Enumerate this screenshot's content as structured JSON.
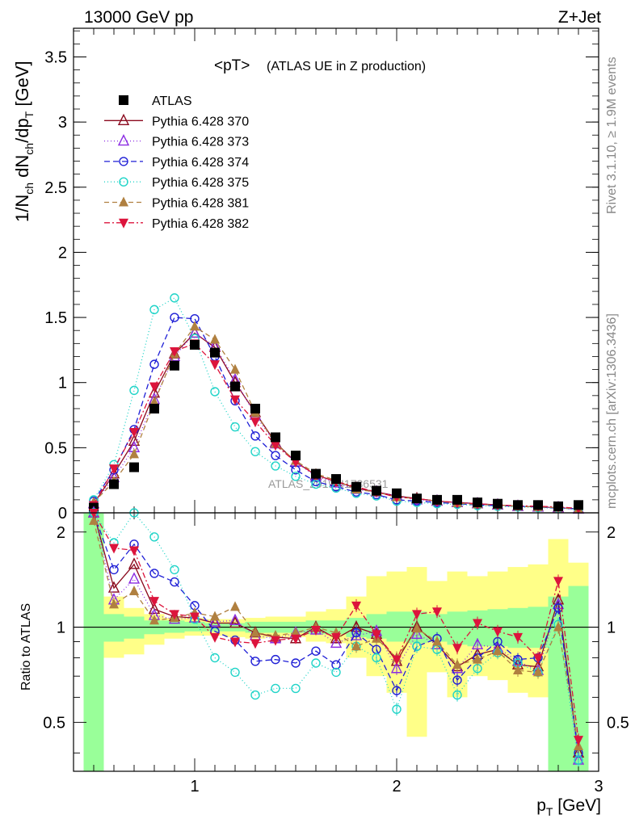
{
  "header": {
    "energy_label": "13000 GeV pp",
    "process_label": "Z+Jet"
  },
  "side_text": {
    "rivet": "Rivet 3.1.10, ≥ 1.9M events",
    "mcplots": "mcplots.cern.ch [arXiv:1306.3436]"
  },
  "watermark": "ATLAS_2019_I1736531",
  "colors": {
    "data": "#000000",
    "s370": "#8b0a1e",
    "s373": "#8a2be2",
    "s374": "#1f1fd6",
    "s375": "#20d4c8",
    "s381": "#b08040",
    "s382": "#dc143c",
    "band_stat": "#99ff99",
    "band_total": "#ffff88"
  },
  "chart_data": [
    {
      "type": "scatter",
      "title": "<pT> (ATLAS UE in Z production)",
      "title_main": "<pT>",
      "title_sub": "(ATLAS UE in Z production)",
      "xlabel": "p_T [GeV]",
      "ylabel": "1/N_ch dN_ch/dp_T [GeV]",
      "xlim": [
        0.4,
        3.0
      ],
      "ylim": [
        0,
        3.72
      ],
      "yticks": [
        "0",
        "0.5",
        "1",
        "1.5",
        "2",
        "2.5",
        "3",
        "3.5"
      ],
      "legend": [
        "ATLAS",
        "Pythia 6.428 370",
        "Pythia 6.428 373",
        "Pythia 6.428 374",
        "Pythia 6.428 375",
        "Pythia 6.428 381",
        "Pythia 6.428 382"
      ],
      "legend_position": "top-left",
      "x": [
        0.5,
        0.6,
        0.7,
        0.8,
        0.9,
        1.0,
        1.1,
        1.2,
        1.3,
        1.4,
        1.5,
        1.6,
        1.7,
        1.8,
        1.9,
        2.0,
        2.1,
        2.2,
        2.3,
        2.4,
        2.5,
        2.6,
        2.7,
        2.8,
        2.9
      ],
      "data": {
        "name": "ATLAS",
        "values": [
          0.04,
          0.22,
          0.35,
          0.8,
          1.13,
          1.29,
          1.23,
          0.97,
          0.8,
          0.58,
          0.44,
          0.3,
          0.26,
          0.2,
          0.17,
          0.15,
          0.11,
          0.1,
          0.1,
          0.08,
          0.07,
          0.06,
          0.06,
          0.05,
          0.06
        ]
      },
      "series": [
        {
          "name": "Pythia 6.428 370",
          "color_key": "s370",
          "values": [
            0.07,
            0.3,
            0.55,
            0.92,
            1.22,
            1.38,
            1.27,
            1.0,
            0.77,
            0.54,
            0.39,
            0.29,
            0.24,
            0.19,
            0.16,
            0.13,
            0.11,
            0.09,
            0.08,
            0.07,
            0.06,
            0.05,
            0.045,
            0.04,
            0.03
          ]
        },
        {
          "name": "Pythia 6.428 373",
          "color_key": "s373",
          "values": [
            0.07,
            0.27,
            0.5,
            0.87,
            1.2,
            1.38,
            1.28,
            1.02,
            0.75,
            0.53,
            0.39,
            0.28,
            0.23,
            0.18,
            0.16,
            0.13,
            0.1,
            0.09,
            0.08,
            0.07,
            0.06,
            0.05,
            0.045,
            0.04,
            0.03
          ]
        },
        {
          "name": "Pythia 6.428 374",
          "color_key": "s374",
          "values": [
            0.09,
            0.33,
            0.64,
            1.14,
            1.5,
            1.49,
            1.2,
            0.86,
            0.59,
            0.44,
            0.33,
            0.24,
            0.2,
            0.16,
            0.14,
            0.1,
            0.09,
            0.08,
            0.07,
            0.06,
            0.055,
            0.05,
            0.045,
            0.035,
            0.03
          ]
        },
        {
          "name": "Pythia 6.428 375",
          "color_key": "s375",
          "values": [
            0.1,
            0.37,
            0.94,
            1.56,
            1.65,
            1.34,
            0.93,
            0.66,
            0.47,
            0.36,
            0.28,
            0.22,
            0.19,
            0.15,
            0.13,
            0.09,
            0.08,
            0.07,
            0.065,
            0.055,
            0.05,
            0.045,
            0.04,
            0.035,
            0.03
          ]
        },
        {
          "name": "Pythia 6.428 381",
          "color_key": "s381",
          "values": [
            0.08,
            0.24,
            0.45,
            0.85,
            1.22,
            1.43,
            1.33,
            1.1,
            0.77,
            0.53,
            0.4,
            0.3,
            0.25,
            0.18,
            0.16,
            0.12,
            0.11,
            0.09,
            0.075,
            0.065,
            0.06,
            0.05,
            0.045,
            0.04,
            0.03
          ]
        },
        {
          "name": "Pythia 6.428 382",
          "color_key": "s382",
          "values": [
            0.06,
            0.34,
            0.62,
            0.97,
            1.24,
            1.3,
            1.14,
            0.87,
            0.7,
            0.52,
            0.39,
            0.29,
            0.24,
            0.2,
            0.16,
            0.12,
            0.11,
            0.09,
            0.08,
            0.07,
            0.06,
            0.055,
            0.05,
            0.045,
            0.035
          ]
        }
      ]
    },
    {
      "type": "scatter",
      "ylabel": "Ratio to ATLAS",
      "xlabel": "p_T [GeV]",
      "xlim": [
        0.4,
        3.0
      ],
      "ylim": [
        0.35,
        2.3
      ],
      "xticks": [
        "1",
        "2",
        "3"
      ],
      "yticks": [
        "0.5",
        "1",
        "2"
      ],
      "log_y": true,
      "reference_line": 1,
      "band_stat": [
        [
          0.35,
          2.3
        ],
        [
          0.9,
          1.1
        ],
        [
          0.92,
          1.08
        ],
        [
          0.95,
          1.05
        ],
        [
          0.96,
          1.05
        ],
        [
          0.97,
          1.04
        ],
        [
          0.97,
          1.03
        ],
        [
          0.97,
          1.03
        ],
        [
          0.96,
          1.04
        ],
        [
          0.96,
          1.04
        ],
        [
          0.96,
          1.04
        ],
        [
          0.95,
          1.05
        ],
        [
          0.95,
          1.05
        ],
        [
          0.93,
          1.07
        ],
        [
          0.92,
          1.1
        ],
        [
          0.9,
          1.12
        ],
        [
          0.89,
          1.12
        ],
        [
          0.9,
          1.1
        ],
        [
          0.88,
          1.12
        ],
        [
          0.87,
          1.13
        ],
        [
          0.87,
          1.14
        ],
        [
          0.86,
          1.15
        ],
        [
          0.86,
          1.16
        ],
        [
          0.35,
          1.25
        ],
        [
          0.35,
          1.35
        ]
      ],
      "band_total": [
        [
          0.35,
          2.3
        ],
        [
          0.8,
          1.25
        ],
        [
          0.82,
          1.15
        ],
        [
          0.88,
          1.1
        ],
        [
          0.92,
          1.07
        ],
        [
          0.94,
          1.07
        ],
        [
          0.94,
          1.06
        ],
        [
          0.93,
          1.06
        ],
        [
          0.92,
          1.07
        ],
        [
          0.93,
          1.08
        ],
        [
          0.93,
          1.08
        ],
        [
          0.9,
          1.12
        ],
        [
          0.89,
          1.14
        ],
        [
          0.8,
          1.25
        ],
        [
          0.7,
          1.45
        ],
        [
          0.62,
          1.5
        ],
        [
          0.45,
          1.55
        ],
        [
          0.72,
          1.4
        ],
        [
          0.6,
          1.5
        ],
        [
          0.7,
          1.45
        ],
        [
          0.68,
          1.5
        ],
        [
          0.62,
          1.55
        ],
        [
          0.6,
          1.58
        ],
        [
          0.35,
          1.9
        ],
        [
          0.35,
          1.6
        ]
      ],
      "series": [
        {
          "name": "Pythia 6.428 370",
          "color_key": "s370",
          "values": [
            2.3,
            1.33,
            1.58,
            1.14,
            1.08,
            1.07,
            1.03,
            1.03,
            0.96,
            0.93,
            0.92,
            1.0,
            0.92,
            1.0,
            0.95,
            0.78,
            1.0,
            0.88,
            0.75,
            0.82,
            0.85,
            0.76,
            0.75,
            1.22,
            0.4
          ]
        },
        {
          "name": "Pythia 6.428 373",
          "color_key": "s373",
          "values": [
            2.3,
            1.22,
            1.42,
            1.09,
            1.06,
            1.07,
            1.04,
            1.05,
            0.94,
            0.92,
            0.96,
            0.98,
            0.89,
            0.94,
            0.97,
            0.74,
            0.95,
            0.88,
            0.74,
            0.88,
            0.86,
            0.78,
            0.73,
            1.18,
            0.38
          ]
        },
        {
          "name": "Pythia 6.428 374",
          "color_key": "s374",
          "values": [
            2.3,
            1.52,
            1.83,
            1.48,
            1.39,
            1.17,
            0.97,
            0.91,
            0.78,
            0.79,
            0.77,
            0.84,
            0.76,
            0.96,
            0.85,
            0.63,
            0.87,
            0.92,
            0.68,
            0.8,
            0.9,
            0.79,
            0.8,
            1.15,
            0.4
          ]
        },
        {
          "name": "Pythia 6.428 375",
          "color_key": "s375",
          "values": [
            2.3,
            1.85,
            2.4,
            1.93,
            1.52,
            1.06,
            0.8,
            0.72,
            0.61,
            0.64,
            0.64,
            0.77,
            0.72,
            0.87,
            0.8,
            0.55,
            0.87,
            0.85,
            0.61,
            0.74,
            0.83,
            0.77,
            0.72,
            1.02,
            0.38
          ]
        },
        {
          "name": "Pythia 6.428 381",
          "color_key": "s381",
          "values": [
            2.17,
            1.18,
            1.3,
            1.05,
            1.07,
            1.11,
            1.08,
            1.16,
            0.96,
            0.94,
            0.96,
            1.0,
            0.96,
            0.87,
            0.92,
            0.8,
            0.99,
            0.9,
            0.76,
            0.79,
            0.84,
            0.73,
            0.72,
            1.0,
            0.42
          ]
        },
        {
          "name": "Pythia 6.428 382",
          "color_key": "s382",
          "values": [
            2.3,
            1.78,
            1.75,
            1.21,
            1.1,
            1.08,
            0.93,
            0.9,
            0.89,
            0.91,
            0.92,
            0.98,
            0.93,
            1.17,
            0.95,
            0.79,
            1.1,
            1.12,
            0.86,
            1.03,
            0.97,
            0.93,
            0.8,
            1.4,
            0.44
          ]
        }
      ]
    }
  ]
}
